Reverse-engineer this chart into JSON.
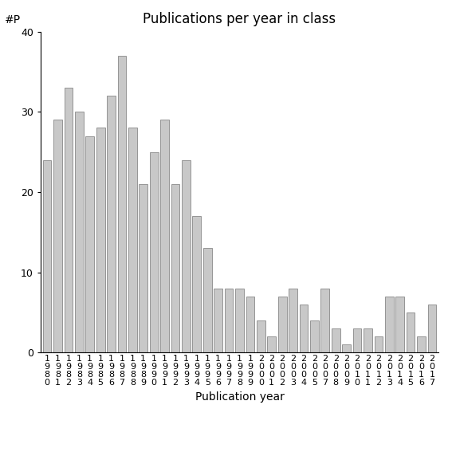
{
  "title": "Publications per year in class",
  "xlabel": "Publication year",
  "ylabel": "#P",
  "ylim": [
    0,
    40
  ],
  "bar_color": "#c8c8c8",
  "edge_color": "#888888",
  "categories": [
    "1980",
    "1981",
    "1982",
    "1983",
    "1984",
    "1985",
    "1986",
    "1987",
    "1988",
    "1989",
    "1990",
    "1991",
    "1992",
    "1993",
    "1994",
    "1995",
    "1996",
    "1997",
    "1998",
    "1999",
    "2000",
    "2001",
    "2002",
    "2003",
    "2004",
    "2005",
    "2007",
    "2008",
    "2009",
    "2010",
    "2011",
    "2012",
    "2013",
    "2014",
    "2015",
    "2016",
    "2017"
  ],
  "values": [
    24,
    29,
    33,
    30,
    27,
    28,
    32,
    37,
    28,
    21,
    25,
    29,
    21,
    24,
    17,
    13,
    8,
    8,
    8,
    7,
    4,
    2,
    7,
    8,
    6,
    4,
    8,
    3,
    1,
    3,
    3,
    2,
    7,
    7,
    5,
    2,
    6
  ],
  "tick_label_fontsize": 8,
  "title_fontsize": 12,
  "axis_label_fontsize": 10,
  "yticks": [
    0,
    10,
    20,
    30,
    40
  ],
  "background_color": "#ffffff"
}
